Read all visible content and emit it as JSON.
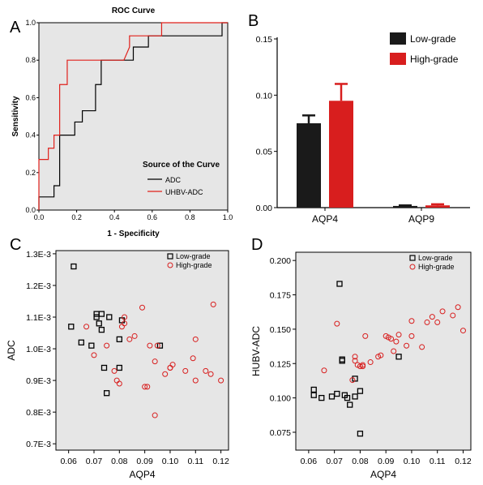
{
  "chart_data": [
    {
      "panel": "A",
      "type": "line",
      "title": "ROC Curve",
      "xlabel": "1 - Specificity",
      "ylabel": "Sensitivity",
      "xlim": [
        0,
        1
      ],
      "ylim": [
        0,
        1
      ],
      "xticks": [
        "0.0",
        "0.2",
        "0.4",
        "0.6",
        "0.8",
        "1.0"
      ],
      "yticks": [
        "0.0",
        "0.2",
        "0.4",
        "0.6",
        "0.8",
        "1.0"
      ],
      "legend_title": "Source of the Curve",
      "legend_position": "bottom-right",
      "series": [
        {
          "name": "ADC",
          "color": "#000000",
          "x": [
            0,
            0,
            0.05,
            0.08,
            0.08,
            0.11,
            0.11,
            0.19,
            0.19,
            0.23,
            0.23,
            0.3,
            0.3,
            0.33,
            0.33,
            0.5,
            0.5,
            0.58,
            0.58,
            0.65,
            0.65,
            0.97,
            0.97,
            1
          ],
          "y": [
            0,
            0.07,
            0.07,
            0.07,
            0.13,
            0.13,
            0.4,
            0.4,
            0.47,
            0.47,
            0.53,
            0.53,
            0.67,
            0.67,
            0.8,
            0.8,
            0.87,
            0.87,
            0.93,
            0.93,
            0.93,
            0.93,
            1,
            1
          ]
        },
        {
          "name": "UHBV-ADC",
          "color": "#e0201b",
          "x": [
            0,
            0,
            0.05,
            0.05,
            0.08,
            0.08,
            0.11,
            0.11,
            0.15,
            0.15,
            0.19,
            0.19,
            0.45,
            0.48,
            0.48,
            0.65,
            0.65,
            1
          ],
          "y": [
            0,
            0.27,
            0.27,
            0.33,
            0.33,
            0.4,
            0.4,
            0.67,
            0.67,
            0.8,
            0.8,
            0.8,
            0.8,
            0.87,
            0.93,
            0.93,
            1,
            1
          ]
        }
      ]
    },
    {
      "panel": "B",
      "type": "bar",
      "categories": [
        "AQP4",
        "AQP9"
      ],
      "ylim": [
        0,
        0.15
      ],
      "yticks": [
        "0.00",
        "0.05",
        "0.10",
        "0.15"
      ],
      "legend_position": "top-right",
      "series": [
        {
          "name": "Low-grade",
          "color": "#1a1a1a",
          "values": [
            0.075,
            0.0015
          ],
          "errors": [
            0.007,
            0.0005
          ]
        },
        {
          "name": "High-grade",
          "color": "#d81e1e",
          "values": [
            0.095,
            0.002
          ],
          "errors": [
            0.015,
            0.001
          ]
        }
      ]
    },
    {
      "panel": "C",
      "type": "scatter",
      "xlabel": "AQP4",
      "ylabel": "ADC",
      "xlim": [
        0.055,
        0.123
      ],
      "ylim": [
        0.00068,
        0.00131
      ],
      "xticks": [
        0.06,
        0.07,
        0.08,
        0.09,
        0.1,
        0.11,
        0.12
      ],
      "xtick_labels": [
        "0.06",
        "0.07",
        "0.08",
        "0.09",
        "0.10",
        "0.11",
        "0.12"
      ],
      "yticks": [
        0.0007,
        0.0008,
        0.0009,
        0.001,
        0.0011,
        0.0012,
        0.0013
      ],
      "ytick_labels": [
        "0.7E-3",
        "0.8E-3",
        "0.9E-3",
        "1.0E-3",
        "1.1E-3",
        "1.2E-3",
        "1.3E-3"
      ],
      "legend_position": "top-right",
      "series": [
        {
          "name": "Low-grade",
          "marker": "square",
          "color": "#000000",
          "x": [
            0.062,
            0.061,
            0.065,
            0.069,
            0.071,
            0.072,
            0.073,
            0.071,
            0.073,
            0.075,
            0.076,
            0.08,
            0.081,
            0.074,
            0.08,
            0.096
          ],
          "y": [
            0.00126,
            0.00107,
            0.00102,
            0.00101,
            0.0011,
            0.00108,
            0.00111,
            0.00111,
            0.00106,
            0.00086,
            0.0011,
            0.00103,
            0.00109,
            0.00094,
            0.00094,
            0.00101
          ]
        },
        {
          "name": "High-grade",
          "marker": "circle",
          "color": "#d81e1e",
          "x": [
            0.067,
            0.07,
            0.075,
            0.078,
            0.079,
            0.08,
            0.082,
            0.082,
            0.086,
            0.089,
            0.09,
            0.091,
            0.092,
            0.094,
            0.094,
            0.095,
            0.098,
            0.1,
            0.1,
            0.101,
            0.106,
            0.109,
            0.11,
            0.11,
            0.114,
            0.116,
            0.117,
            0.12,
            0.084,
            0.081
          ],
          "y": [
            0.00107,
            0.00098,
            0.00101,
            0.00093,
            0.0009,
            0.00089,
            0.00108,
            0.0011,
            0.00104,
            0.00113,
            0.00088,
            0.00088,
            0.00101,
            0.00096,
            0.00079,
            0.00101,
            0.00092,
            0.00094,
            0.00094,
            0.00095,
            0.00093,
            0.00097,
            0.00103,
            0.0009,
            0.00093,
            0.00092,
            0.00114,
            0.0009,
            0.00103,
            0.00107
          ]
        }
      ]
    },
    {
      "panel": "D",
      "type": "scatter",
      "xlabel": "AQP4",
      "ylabel": "HUBV-ADC",
      "xlim": [
        0.055,
        0.123
      ],
      "ylim": [
        0.062,
        0.206
      ],
      "xticks": [
        0.06,
        0.07,
        0.08,
        0.09,
        0.1,
        0.11,
        0.12
      ],
      "xtick_labels": [
        "0.06",
        "0.07",
        "0.08",
        "0.09",
        "0.10",
        "0.11",
        "0.12"
      ],
      "yticks": [
        0.075,
        0.1,
        0.125,
        0.15,
        0.175,
        0.2
      ],
      "ytick_labels": [
        "0.075",
        "0.100",
        "0.125",
        "0.150",
        "0.175",
        "0.200"
      ],
      "legend_position": "top-right",
      "series": [
        {
          "name": "Low-grade",
          "marker": "square",
          "color": "#000000",
          "x": [
            0.062,
            0.062,
            0.065,
            0.069,
            0.071,
            0.072,
            0.073,
            0.073,
            0.074,
            0.075,
            0.076,
            0.078,
            0.08,
            0.08,
            0.078,
            0.095
          ],
          "y": [
            0.106,
            0.102,
            0.1,
            0.101,
            0.103,
            0.183,
            0.127,
            0.128,
            0.102,
            0.1,
            0.095,
            0.114,
            0.105,
            0.074,
            0.101,
            0.13
          ]
        },
        {
          "name": "High-grade",
          "marker": "circle",
          "color": "#d81e1e",
          "x": [
            0.066,
            0.071,
            0.077,
            0.078,
            0.079,
            0.08,
            0.081,
            0.082,
            0.084,
            0.087,
            0.088,
            0.09,
            0.091,
            0.092,
            0.093,
            0.094,
            0.095,
            0.098,
            0.1,
            0.1,
            0.104,
            0.106,
            0.108,
            0.11,
            0.112,
            0.116,
            0.118,
            0.12,
            0.081,
            0.078
          ],
          "y": [
            0.12,
            0.154,
            0.113,
            0.13,
            0.124,
            0.123,
            0.123,
            0.145,
            0.126,
            0.13,
            0.131,
            0.145,
            0.144,
            0.143,
            0.134,
            0.141,
            0.146,
            0.138,
            0.145,
            0.156,
            0.137,
            0.155,
            0.159,
            0.155,
            0.163,
            0.16,
            0.166,
            0.149,
            0.124,
            0.127
          ]
        }
      ]
    }
  ],
  "panels": {
    "a_label": "A",
    "b_label": "B",
    "c_label": "C",
    "d_label": "D"
  },
  "colors": {
    "plot_bg": "#e6e6e6",
    "red": "#d81e1e",
    "black": "#000000"
  }
}
